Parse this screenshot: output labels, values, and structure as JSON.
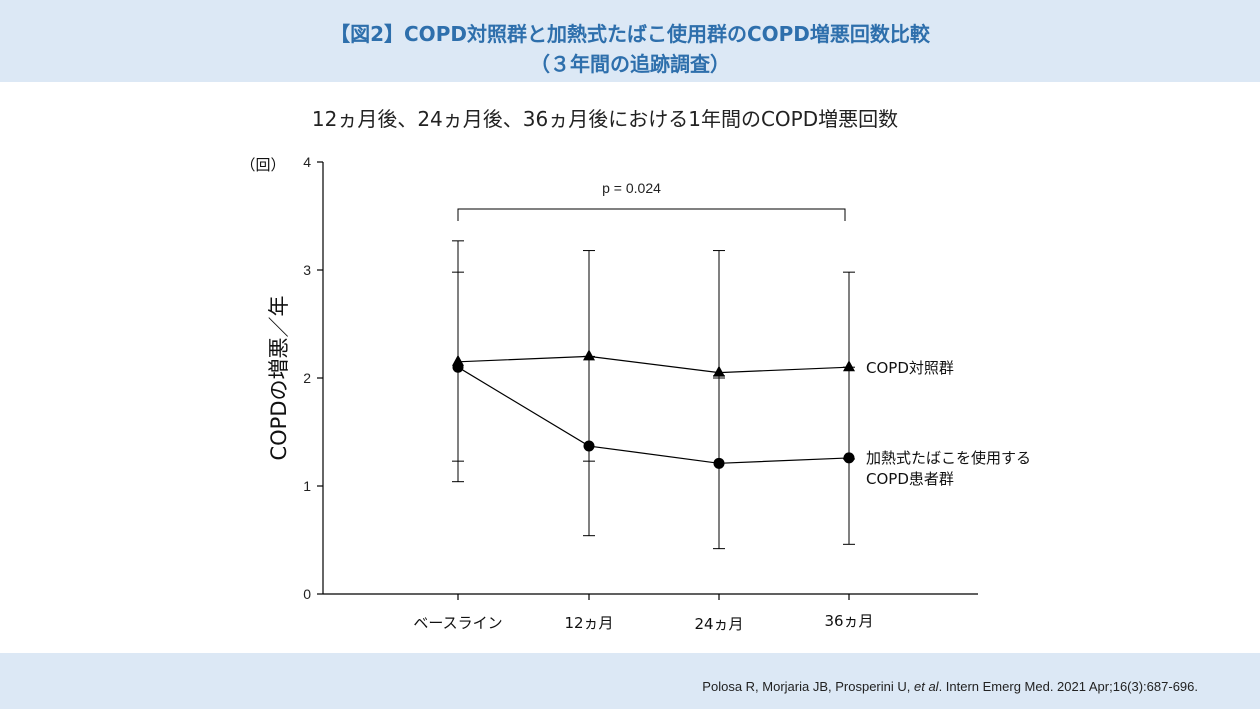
{
  "header": {
    "title_line1": "【図2】COPD対照群と加熱式たばこ使用群のCOPD増悪回数比較",
    "title_line2": "（３年間の追跡調査）"
  },
  "subtitle": "12ヵ月後、24ヵ月後、36ヵ月後における1年間のCOPD増悪回数",
  "footer": {
    "citation_before": "Polosa R, Morjaria JB, Prosperini U, ",
    "citation_etal": "et al",
    "citation_after": ". Intern Emerg Med. 2021 Apr;16(3):687-696."
  },
  "chart_data": {
    "type": "line",
    "y_unit_label": "（回）",
    "ylabel": "COPDの増悪／年",
    "ylim": [
      0,
      4
    ],
    "yticks": [
      0,
      1,
      2,
      3,
      4
    ],
    "categories": [
      "ベースライン",
      "12ヵ月",
      "24ヵ月",
      "36ヵ月"
    ],
    "annotation": "p = 0.024",
    "series": [
      {
        "name": "COPD対照群",
        "marker": "triangle",
        "values": [
          2.15,
          2.2,
          2.05,
          2.1
        ],
        "error_upper": [
          2.98,
          3.18,
          3.18,
          2.98
        ],
        "error_lower": [
          1.23,
          1.23,
          2.0,
          1.25
        ]
      },
      {
        "name_line1": "加熱式たばこを使用する",
        "name_line2": "COPD患者群",
        "marker": "circle",
        "values": [
          2.1,
          1.37,
          1.21,
          1.26
        ],
        "error_upper": [
          3.27,
          2.2,
          2.02,
          2.1
        ],
        "error_lower": [
          1.04,
          0.54,
          0.42,
          0.46
        ]
      }
    ],
    "colors": {
      "series": "#000000",
      "header_bg": "#dce8f5",
      "title": "#2e6fac"
    }
  }
}
